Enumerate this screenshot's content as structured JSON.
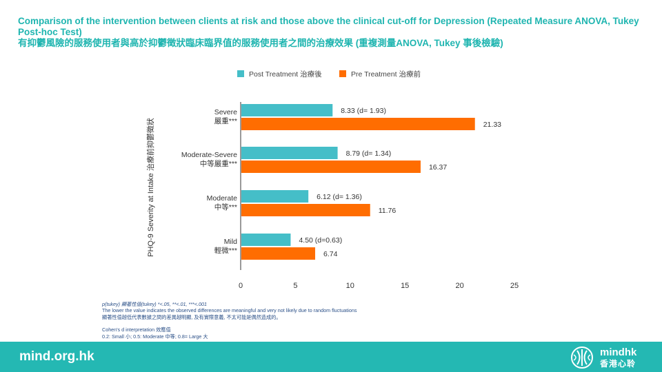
{
  "title": {
    "line1": "Comparison of the intervention between clients at risk and those above the clinical cut-off for Depression (Repeated Measure ANOVA, Tukey",
    "line2": "Post-hoc Test)",
    "line3": "有抑鬱風險的服務使用者與高於抑鬱徵狀臨床臨界值的服務使用者之間的治療效果 (重複測量ANOVA, Tukey 事後檢驗)"
  },
  "chart_data": {
    "type": "bar",
    "orientation": "horizontal",
    "ylabel": "PHQ-9 Severity at Intake 治療前抑鬱徵狀",
    "xlabel": "",
    "xlim": [
      0,
      25
    ],
    "x_ticks": [
      "0",
      "5",
      "10",
      "15",
      "20",
      "25"
    ],
    "grid": false,
    "legend_position": "top",
    "categories": [
      {
        "line1": "Severe",
        "line2": "嚴重***"
      },
      {
        "line1": "Moderate-Severe",
        "line2": "中等嚴重***"
      },
      {
        "line1": "Moderate",
        "line2": "中等***"
      },
      {
        "line1": "Mild",
        "line2": "輕微***"
      }
    ],
    "series": [
      {
        "name": "Post Treatment 治療後",
        "color": "#45bec8",
        "values": [
          8.33,
          8.79,
          6.12,
          4.5
        ],
        "labels": [
          "8.33 (d= 1.93)",
          "8.79 (d= 1.34)",
          "6.12 (d= 1.36)",
          "4.50 (d=0.63)"
        ]
      },
      {
        "name": "Pre Treatment 治療前",
        "color": "#ff6d01",
        "values": [
          21.33,
          16.37,
          11.76,
          6.74
        ],
        "labels": [
          "21.33",
          "16.37",
          "11.76",
          "6.74"
        ]
      }
    ]
  },
  "notes": {
    "line1": "p(tukey)  顯著性值(tukey)  *<.05, **<.01, ***<.001",
    "line2": "The lower the value indicates the observed differences are meaningful and very not likely due to random fluctuations",
    "line3": "顯著性值越低代表數據之間的差異越明顯, 及有實際意義, 不太可能是偶然造成的。",
    "line4": "Cohen's d interpretation 效應值",
    "line5": "0.2: Small 小; 0.5: Moderate 中等; 0.8= Large 大"
  },
  "footer": {
    "url": "mind.org.hk",
    "logo_text": "mindhk",
    "logo_text_chinese": "香港心聆"
  },
  "colors": {
    "accent": "#1fb5b0",
    "footer_bg": "#24b8b3",
    "notes_text": "#2a4f87"
  }
}
